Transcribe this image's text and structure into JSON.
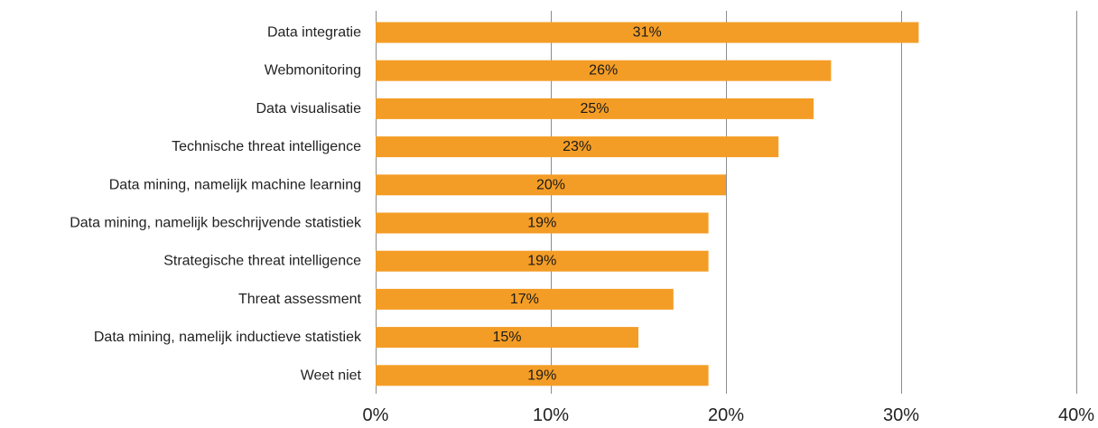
{
  "chart_data": {
    "type": "bar",
    "orientation": "horizontal",
    "categories": [
      "Data integratie",
      "Webmonitoring",
      "Data visualisatie",
      "Technische threat intelligence",
      "Data mining, namelijk machine learning",
      "Data mining, namelijk beschrijvende statistiek",
      "Strategische threat intelligence",
      "Threat assessment",
      "Data mining, namelijk inductieve statistiek",
      "Weet niet"
    ],
    "values": [
      31,
      26,
      25,
      23,
      20,
      19,
      19,
      17,
      15,
      19
    ],
    "value_labels": [
      "31%",
      "26%",
      "25%",
      "23%",
      "20%",
      "19%",
      "19%",
      "17%",
      "15%",
      "19%"
    ],
    "x_ticks": [
      0,
      10,
      20,
      30,
      40
    ],
    "x_tick_labels": [
      "0%",
      "10%",
      "20%",
      "30%",
      "40%"
    ],
    "xlim": [
      0,
      40
    ],
    "grid": true,
    "legend": "none",
    "title": "",
    "xlabel": "",
    "ylabel": "",
    "colors": {
      "bar": "#F49D26",
      "grid": "#8c8c8c",
      "text": "#222222"
    }
  }
}
